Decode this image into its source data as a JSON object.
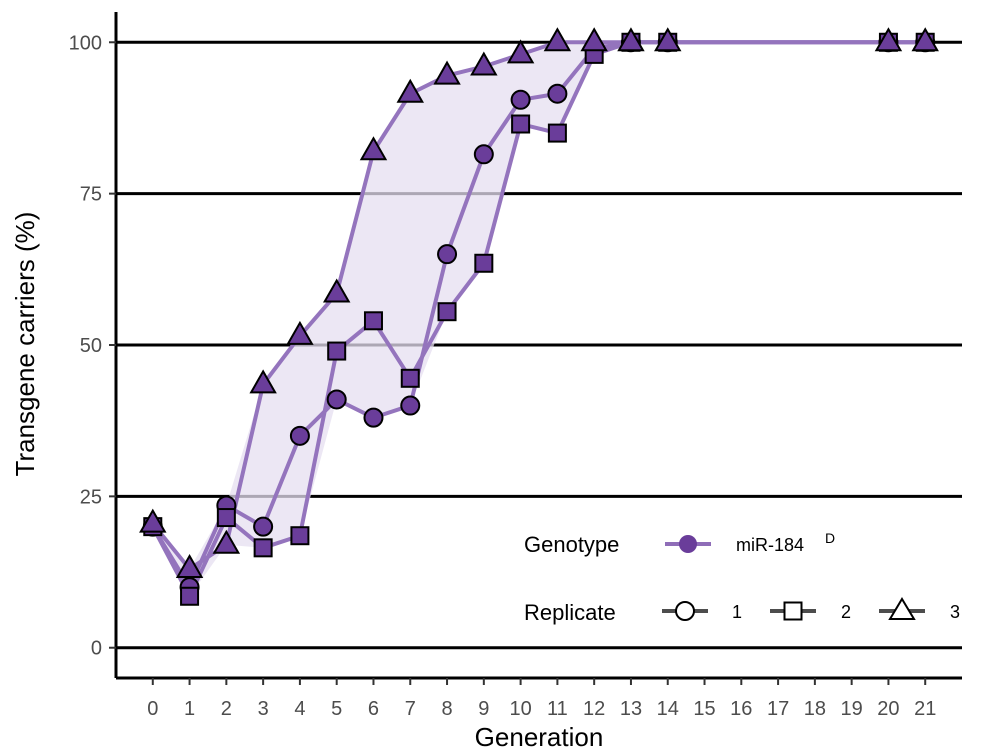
{
  "chart_data": {
    "type": "line",
    "xlabel": "Generation",
    "ylabel": "Transgene carriers (%)",
    "x_ticks": [
      "0",
      "1",
      "2",
      "3",
      "4",
      "5",
      "6",
      "7",
      "8",
      "9",
      "10",
      "11",
      "12",
      "13",
      "14",
      "15",
      "16",
      "17",
      "18",
      "19",
      "20",
      "21"
    ],
    "y_ticks": [
      "0",
      "25",
      "50",
      "75",
      "100"
    ],
    "xlim": [
      -1,
      22
    ],
    "ylim": [
      -5,
      105
    ],
    "grid": "horizontal major lines",
    "colors": {
      "genotype": "#6a3d9a",
      "ribbon": "#e6dff0"
    },
    "legend": {
      "placement": "bottom-right",
      "genotype_title": "Genotype",
      "genotype_label": "miR-184",
      "genotype_superscript": "D",
      "replicate_title": "Replicate",
      "replicate_labels": [
        "1",
        "2",
        "3"
      ]
    },
    "series": [
      {
        "name": "1",
        "shape": "circle",
        "x": [
          0,
          1,
          2,
          3,
          4,
          5,
          6,
          7,
          8,
          9,
          10,
          11,
          12,
          13,
          14,
          20,
          21
        ],
        "y": [
          20,
          10,
          23.5,
          20,
          35,
          41,
          38,
          40,
          65,
          81.5,
          90.5,
          91.5,
          99,
          100,
          100,
          100,
          100
        ]
      },
      {
        "name": "2",
        "shape": "square",
        "x": [
          0,
          1,
          2,
          3,
          4,
          5,
          6,
          7,
          8,
          9,
          10,
          11,
          12,
          13,
          14,
          20,
          21
        ],
        "y": [
          20,
          8.5,
          21.5,
          16.5,
          18.5,
          49,
          54,
          44.5,
          55.5,
          63.5,
          86.5,
          85,
          98,
          100,
          100,
          100,
          100
        ]
      },
      {
        "name": "3",
        "shape": "triangle",
        "x": [
          0,
          1,
          2,
          3,
          4,
          5,
          6,
          7,
          8,
          9,
          10,
          11,
          12,
          13,
          14,
          20,
          21
        ],
        "y": [
          20.5,
          13,
          17,
          43.5,
          51.5,
          58.5,
          82,
          91.5,
          94.5,
          96,
          98,
          100,
          100,
          100,
          100,
          100,
          100
        ]
      }
    ]
  }
}
